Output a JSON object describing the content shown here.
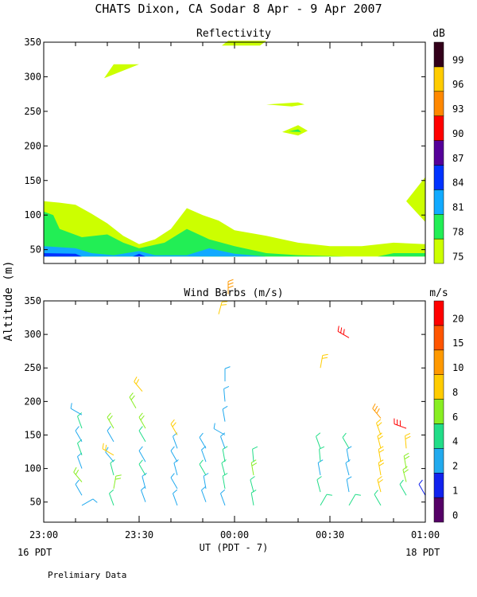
{
  "title": "CHATS Dixon, CA  Sodar   8 Apr -  9 Apr 2007",
  "ylabel": "Altitude (m)",
  "xlabel": "UT  (PDT - 7)",
  "footer_left": "16 PDT",
  "footer_right": "18 PDT",
  "footnote": "Prelimiary Data",
  "chart_data": [
    {
      "type": "heatmap",
      "title": "Reflectivity",
      "colorbar_unit": "dB",
      "ylim": [
        30,
        350
      ],
      "xlim": [
        0,
        120
      ],
      "x_ticks": [
        "23:00",
        "23:30",
        "00:00",
        "00:30",
        "01:00"
      ],
      "x_tick_minutes": [
        0,
        30,
        60,
        90,
        120
      ],
      "y_ticks": [
        50,
        100,
        150,
        200,
        250,
        300,
        350
      ],
      "colorbar_levels": [
        "75",
        "78",
        "81",
        "84",
        "87",
        "90",
        "93",
        "96",
        "99"
      ],
      "colorbar_colors": [
        "#ccff00",
        "#22ee55",
        "#11aaff",
        "#0033ff",
        "#550099",
        "#ff0000",
        "#ff8800",
        "#ffcc00",
        "#33001a"
      ],
      "contours": [
        {
          "level": 75,
          "color": "#ccff00",
          "points": [
            [
              0,
              120
            ],
            [
              5,
              118
            ],
            [
              10,
              115
            ],
            [
              15,
              102
            ],
            [
              20,
              88
            ],
            [
              25,
              70
            ],
            [
              30,
              58
            ],
            [
              35,
              65
            ],
            [
              40,
              80
            ],
            [
              45,
              110
            ],
            [
              50,
              100
            ],
            [
              55,
              92
            ],
            [
              60,
              78
            ],
            [
              70,
              70
            ],
            [
              80,
              60
            ],
            [
              90,
              55
            ],
            [
              100,
              55
            ],
            [
              110,
              60
            ],
            [
              120,
              58
            ],
            [
              120,
              40
            ],
            [
              0,
              40
            ]
          ]
        },
        {
          "level": 78,
          "color": "#22ee55",
          "points": [
            [
              0,
              105
            ],
            [
              3,
              100
            ],
            [
              5,
              80
            ],
            [
              12,
              68
            ],
            [
              20,
              72
            ],
            [
              25,
              60
            ],
            [
              30,
              52
            ],
            [
              38,
              60
            ],
            [
              45,
              80
            ],
            [
              52,
              65
            ],
            [
              60,
              55
            ],
            [
              70,
              45
            ],
            [
              80,
              42
            ],
            [
              95,
              40
            ],
            [
              105,
              40
            ],
            [
              110,
              45
            ],
            [
              120,
              45
            ],
            [
              120,
              40
            ],
            [
              0,
              40
            ]
          ]
        },
        {
          "level": 81,
          "color": "#11aaff",
          "points": [
            [
              0,
              55
            ],
            [
              10,
              52
            ],
            [
              15,
              45
            ],
            [
              22,
              42
            ],
            [
              30,
              48
            ],
            [
              35,
              42
            ],
            [
              40,
              42
            ],
            [
              45,
              42
            ],
            [
              52,
              52
            ],
            [
              60,
              44
            ],
            [
              70,
              40
            ],
            [
              0,
              40
            ]
          ]
        },
        {
          "level": 84,
          "color": "#0033ff",
          "points": [
            [
              0,
              45
            ],
            [
              10,
              44
            ],
            [
              12,
              40
            ],
            [
              28,
              40
            ],
            [
              30,
              44
            ],
            [
              32,
              40
            ],
            [
              0,
              40
            ]
          ]
        },
        {
          "level": 75,
          "color": "#ccff00",
          "points": [
            [
              19,
              298
            ],
            [
              22,
              318
            ],
            [
              30,
              318
            ]
          ]
        },
        {
          "level": 75,
          "color": "#ccff00",
          "points": [
            [
              56,
              345
            ],
            [
              58,
              352
            ],
            [
              70,
              352
            ],
            [
              68,
              345
            ]
          ]
        },
        {
          "level": 75,
          "color": "#ccff00",
          "points": [
            [
              70,
              260
            ],
            [
              80,
              263
            ],
            [
              82,
              260
            ],
            [
              78,
              257
            ]
          ]
        },
        {
          "level": 75,
          "color": "#ccff00",
          "points": [
            [
              75,
              220
            ],
            [
              80,
              230
            ],
            [
              83,
              222
            ],
            [
              80,
              215
            ]
          ]
        },
        {
          "level": 78,
          "color": "#22ee55",
          "points": [
            [
              77,
              221
            ],
            [
              80,
              224
            ],
            [
              81,
              220
            ]
          ]
        },
        {
          "level": 75,
          "color": "#ccff00",
          "points": [
            [
              114,
              120
            ],
            [
              120,
              155
            ],
            [
              120,
              90
            ]
          ]
        }
      ]
    },
    {
      "type": "scatter",
      "title": "Wind Barbs (m/s)",
      "colorbar_unit": "m/s",
      "ylim": [
        20,
        350
      ],
      "xlim": [
        0,
        120
      ],
      "x_ticks": [
        "23:00",
        "23:30",
        "00:00",
        "00:30",
        "01:00"
      ],
      "x_tick_minutes": [
        0,
        30,
        60,
        90,
        120
      ],
      "y_ticks": [
        50,
        100,
        150,
        200,
        250,
        300,
        350
      ],
      "colorbar_levels": [
        "0",
        "1",
        "2",
        "4",
        "6",
        "8",
        "10",
        "15",
        "20"
      ],
      "colorbar_colors": [
        "#550066",
        "#1122ee",
        "#22aaee",
        "#22dd88",
        "#88ee22",
        "#ffcc00",
        "#ff9900",
        "#ff5500",
        "#ff0000"
      ],
      "barbs": [
        {
          "x": 12,
          "y": 45,
          "dir": 60,
          "speed": 3
        },
        {
          "x": 12,
          "y": 60,
          "dir": 330,
          "speed": 3
        },
        {
          "x": 12,
          "y": 80,
          "dir": 320,
          "speed": 6
        },
        {
          "x": 12,
          "y": 100,
          "dir": 340,
          "speed": 2
        },
        {
          "x": 12,
          "y": 120,
          "dir": 340,
          "speed": 4
        },
        {
          "x": 12,
          "y": 140,
          "dir": 330,
          "speed": 3
        },
        {
          "x": 12,
          "y": 160,
          "dir": 340,
          "speed": 5
        },
        {
          "x": 12,
          "y": 180,
          "dir": 300,
          "speed": 3
        },
        {
          "x": 22,
          "y": 45,
          "dir": 340,
          "speed": 4
        },
        {
          "x": 22,
          "y": 70,
          "dir": 10,
          "speed": 6
        },
        {
          "x": 22,
          "y": 90,
          "dir": 345,
          "speed": 4
        },
        {
          "x": 22,
          "y": 110,
          "dir": 320,
          "speed": 2
        },
        {
          "x": 22,
          "y": 120,
          "dir": 300,
          "speed": 8
        },
        {
          "x": 22,
          "y": 140,
          "dir": 330,
          "speed": 2
        },
        {
          "x": 22,
          "y": 160,
          "dir": 330,
          "speed": 7
        },
        {
          "x": 29,
          "y": 190,
          "dir": 330,
          "speed": 6
        },
        {
          "x": 31,
          "y": 215,
          "dir": 320,
          "speed": 9
        },
        {
          "x": 32,
          "y": 50,
          "dir": 340,
          "speed": 2
        },
        {
          "x": 32,
          "y": 70,
          "dir": 345,
          "speed": 3
        },
        {
          "x": 32,
          "y": 90,
          "dir": 330,
          "speed": 4
        },
        {
          "x": 32,
          "y": 110,
          "dir": 330,
          "speed": 2
        },
        {
          "x": 32,
          "y": 140,
          "dir": 330,
          "speed": 5
        },
        {
          "x": 32,
          "y": 160,
          "dir": 330,
          "speed": 6
        },
        {
          "x": 42,
          "y": 45,
          "dir": 340,
          "speed": 3
        },
        {
          "x": 42,
          "y": 70,
          "dir": 330,
          "speed": 2
        },
        {
          "x": 42,
          "y": 90,
          "dir": 345,
          "speed": 3
        },
        {
          "x": 42,
          "y": 110,
          "dir": 330,
          "speed": 2
        },
        {
          "x": 42,
          "y": 130,
          "dir": 340,
          "speed": 3
        },
        {
          "x": 42,
          "y": 150,
          "dir": 330,
          "speed": 8
        },
        {
          "x": 51,
          "y": 50,
          "dir": 340,
          "speed": 3
        },
        {
          "x": 51,
          "y": 70,
          "dir": 350,
          "speed": 2
        },
        {
          "x": 51,
          "y": 90,
          "dir": 330,
          "speed": 5
        },
        {
          "x": 51,
          "y": 110,
          "dir": 340,
          "speed": 3
        },
        {
          "x": 51,
          "y": 130,
          "dir": 330,
          "speed": 3
        },
        {
          "x": 55,
          "y": 330,
          "dir": 15,
          "speed": 9
        },
        {
          "x": 57,
          "y": 45,
          "dir": 340,
          "speed": 3
        },
        {
          "x": 57,
          "y": 70,
          "dir": 350,
          "speed": 5
        },
        {
          "x": 57,
          "y": 90,
          "dir": 345,
          "speed": 4
        },
        {
          "x": 57,
          "y": 110,
          "dir": 350,
          "speed": 4
        },
        {
          "x": 57,
          "y": 130,
          "dir": 340,
          "speed": 3
        },
        {
          "x": 57,
          "y": 150,
          "dir": 300,
          "speed": 3
        },
        {
          "x": 57,
          "y": 170,
          "dir": 350,
          "speed": 3
        },
        {
          "x": 57,
          "y": 200,
          "dir": 355,
          "speed": 3
        },
        {
          "x": 57,
          "y": 230,
          "dir": 0,
          "speed": 2
        },
        {
          "x": 58,
          "y": 360,
          "dir": 0,
          "speed": 10
        },
        {
          "x": 66,
          "y": 45,
          "dir": 350,
          "speed": 4
        },
        {
          "x": 66,
          "y": 65,
          "dir": 345,
          "speed": 4
        },
        {
          "x": 66,
          "y": 90,
          "dir": 350,
          "speed": 6
        },
        {
          "x": 66,
          "y": 110,
          "dir": 355,
          "speed": 4
        },
        {
          "x": 87,
          "y": 45,
          "dir": 30,
          "speed": 4
        },
        {
          "x": 87,
          "y": 65,
          "dir": 345,
          "speed": 4
        },
        {
          "x": 87,
          "y": 90,
          "dir": 350,
          "speed": 2
        },
        {
          "x": 87,
          "y": 110,
          "dir": 355,
          "speed": 4
        },
        {
          "x": 87,
          "y": 130,
          "dir": 340,
          "speed": 4
        },
        {
          "x": 87,
          "y": 250,
          "dir": 10,
          "speed": 9
        },
        {
          "x": 96,
          "y": 45,
          "dir": 30,
          "speed": 4
        },
        {
          "x": 96,
          "y": 65,
          "dir": 350,
          "speed": 3
        },
        {
          "x": 96,
          "y": 90,
          "dir": 345,
          "speed": 2
        },
        {
          "x": 96,
          "y": 110,
          "dir": 350,
          "speed": 3
        },
        {
          "x": 96,
          "y": 130,
          "dir": 330,
          "speed": 5
        },
        {
          "x": 96,
          "y": 295,
          "dir": 300,
          "speed": 20
        },
        {
          "x": 106,
          "y": 45,
          "dir": 330,
          "speed": 4
        },
        {
          "x": 106,
          "y": 65,
          "dir": 345,
          "speed": 9
        },
        {
          "x": 106,
          "y": 90,
          "dir": 350,
          "speed": 9
        },
        {
          "x": 106,
          "y": 110,
          "dir": 350,
          "speed": 9
        },
        {
          "x": 106,
          "y": 130,
          "dir": 345,
          "speed": 9
        },
        {
          "x": 106,
          "y": 150,
          "dir": 340,
          "speed": 9
        },
        {
          "x": 106,
          "y": 175,
          "dir": 320,
          "speed": 10
        },
        {
          "x": 114,
          "y": 60,
          "dir": 330,
          "speed": 4
        },
        {
          "x": 114,
          "y": 80,
          "dir": 345,
          "speed": 6
        },
        {
          "x": 114,
          "y": 100,
          "dir": 350,
          "speed": 7
        },
        {
          "x": 114,
          "y": 130,
          "dir": 355,
          "speed": 8
        },
        {
          "x": 114,
          "y": 160,
          "dir": 290,
          "speed": 22
        },
        {
          "x": 120,
          "y": 60,
          "dir": 330,
          "speed": 1
        }
      ]
    }
  ]
}
